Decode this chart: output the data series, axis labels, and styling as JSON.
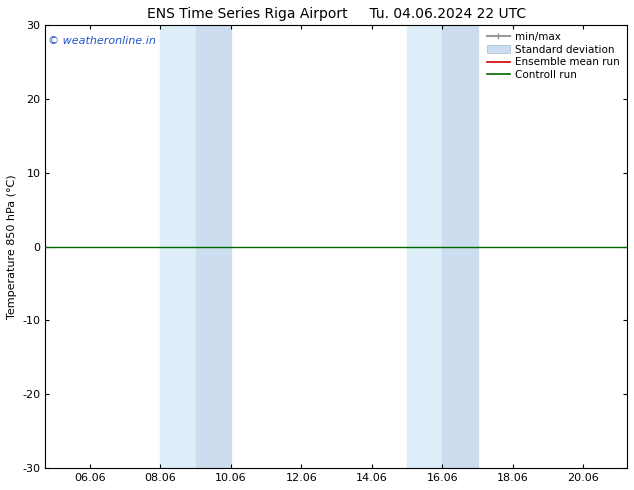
{
  "title_left": "ENS Time Series Riga Airport",
  "title_right": "Tu. 04.06.2024 22 UTC",
  "ylabel": "Temperature 850 hPa (°C)",
  "xlim_min": 4.8,
  "xlim_max": 21.3,
  "ylim_min": -30,
  "ylim_max": 30,
  "yticks": [
    -30,
    -20,
    -10,
    0,
    10,
    20,
    30
  ],
  "xticks": [
    6.06,
    8.06,
    10.06,
    12.06,
    14.06,
    16.06,
    18.06,
    20.06
  ],
  "xtick_labels": [
    "06.06",
    "08.06",
    "10.06",
    "12.06",
    "14.06",
    "16.06",
    "18.06",
    "20.06"
  ],
  "zero_line_y": 0,
  "shaded_bands": [
    {
      "x_start": 8.06,
      "x_end": 9.06,
      "color": "#ddeef8"
    },
    {
      "x_start": 9.06,
      "x_end": 10.06,
      "color": "#ccddf0"
    },
    {
      "x_start": 15.06,
      "x_end": 16.06,
      "color": "#ddeef8"
    },
    {
      "x_start": 16.06,
      "x_end": 17.06,
      "color": "#ccddf0"
    }
  ],
  "bg_color": "#ffffff",
  "plot_bg_color": "#ffffff",
  "zero_line_color": "#006600",
  "ensemble_mean_color": "#cc0000",
  "control_run_color": "#006600",
  "watermark_text": "© weatheronline.in",
  "watermark_color": "#2255cc",
  "font_size_title": 10,
  "font_size_axis": 8,
  "font_size_tick": 8,
  "font_size_legend": 7.5,
  "font_size_watermark": 8
}
